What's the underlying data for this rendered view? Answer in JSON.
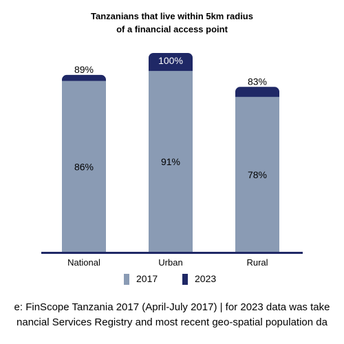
{
  "colors": {
    "series_2017": "#8a9bb4",
    "series_2023": "#1f2866",
    "axis": "#1f2866"
  },
  "title_lines": [
    "Tanzanians that live within 5km radius",
    "of a financial access point"
  ],
  "source_lines": [
    "e: FinScope Tanzania 2017 (April-July 2017) | for 2023 data was take",
    "nancial Services Registry and most recent geo-spatial population da"
  ],
  "legend": [
    {
      "label": "2017",
      "color_key": "series_2017"
    },
    {
      "label": "2023",
      "color_key": "series_2023"
    }
  ],
  "chart_data": {
    "type": "bar",
    "title": "Tanzanians that live within 5km radius of a financial access point",
    "categories": [
      "National",
      "Urban",
      "Rural"
    ],
    "series": [
      {
        "name": "2017",
        "values": [
          86,
          91,
          78
        ],
        "labels": [
          "86%",
          "91%",
          "78%"
        ]
      },
      {
        "name": "2023",
        "values": [
          89,
          100,
          83
        ],
        "labels": [
          "89%",
          "100%",
          "83%"
        ]
      }
    ],
    "ylim": [
      0,
      100
    ],
    "grid": false,
    "legend_position": "bottom"
  }
}
